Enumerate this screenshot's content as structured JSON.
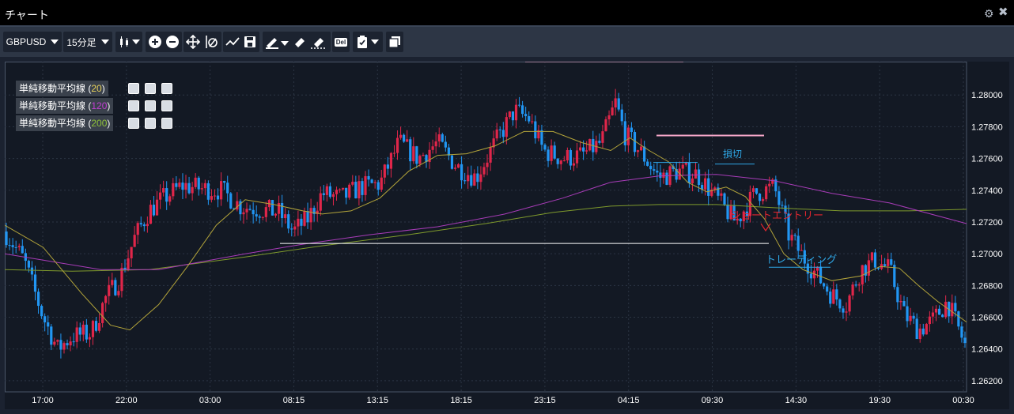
{
  "window": {
    "title": "チャート"
  },
  "toolbar": {
    "symbol": "GBPUSD",
    "timeframe": "15分足",
    "delete_label": "Del"
  },
  "legend": [
    {
      "name": "単純移動平均線",
      "period": "20",
      "color": "#e8d25a"
    },
    {
      "name": "単純移動平均線",
      "period": "120",
      "color": "#c040d0"
    },
    {
      "name": "単純移動平均線",
      "period": "200",
      "color": "#8fc23a"
    }
  ],
  "annotations": {
    "stop_loss": "損切",
    "short_entry": "ショートエントリー",
    "trailing": "トレーディング"
  },
  "chart_data": {
    "type": "candlestick",
    "symbol": "GBPUSD",
    "timeframe": "15分足",
    "y_ticks": [
      "1.28000",
      "1.27800",
      "1.27600",
      "1.27400",
      "1.27200",
      "1.27000",
      "1.26800",
      "1.26600",
      "1.26400",
      "1.26200"
    ],
    "x_ticks": [
      "17:00",
      "22:00",
      "03:00",
      "08:15",
      "13:15",
      "18:15",
      "23:15",
      "04:15",
      "09:30",
      "14:30",
      "19:30",
      "00:30"
    ],
    "ylim": [
      1.2613,
      1.2821
    ],
    "price_path": [
      [
        0,
        1.2714
      ],
      [
        0.02,
        1.2696
      ],
      [
        0.04,
        1.266
      ],
      [
        0.055,
        1.264
      ],
      [
        0.07,
        1.2648
      ],
      [
        0.09,
        1.265
      ],
      [
        0.105,
        1.2672
      ],
      [
        0.12,
        1.2685
      ],
      [
        0.135,
        1.271
      ],
      [
        0.15,
        1.2727
      ],
      [
        0.165,
        1.2735
      ],
      [
        0.185,
        1.2743
      ],
      [
        0.205,
        1.2741
      ],
      [
        0.225,
        1.274
      ],
      [
        0.245,
        1.273
      ],
      [
        0.265,
        1.2728
      ],
      [
        0.285,
        1.2726
      ],
      [
        0.3,
        1.2714
      ],
      [
        0.315,
        1.2722
      ],
      [
        0.33,
        1.2738
      ],
      [
        0.35,
        1.2735
      ],
      [
        0.37,
        1.2742
      ],
      [
        0.39,
        1.2744
      ],
      [
        0.41,
        1.277
      ],
      [
        0.43,
        1.276
      ],
      [
        0.45,
        1.277
      ],
      [
        0.47,
        1.2755
      ],
      [
        0.49,
        1.2748
      ],
      [
        0.51,
        1.277
      ],
      [
        0.53,
        1.279
      ],
      [
        0.545,
        1.2785
      ],
      [
        0.56,
        1.2765
      ],
      [
        0.58,
        1.276
      ],
      [
        0.6,
        1.2762
      ],
      [
        0.62,
        1.277
      ],
      [
        0.635,
        1.2795
      ],
      [
        0.645,
        1.2775
      ],
      [
        0.66,
        1.2765
      ],
      [
        0.68,
        1.2748
      ],
      [
        0.7,
        1.2752
      ],
      [
        0.72,
        1.275
      ],
      [
        0.74,
        1.2735
      ],
      [
        0.76,
        1.272
      ],
      [
        0.78,
        1.2738
      ],
      [
        0.8,
        1.2742
      ],
      [
        0.815,
        1.2712
      ],
      [
        0.83,
        1.2698
      ],
      [
        0.845,
        1.2686
      ],
      [
        0.86,
        1.2674
      ],
      [
        0.875,
        1.2668
      ],
      [
        0.89,
        1.269
      ],
      [
        0.905,
        1.2696
      ],
      [
        0.92,
        1.269
      ],
      [
        0.935,
        1.2662
      ],
      [
        0.95,
        1.2652
      ],
      [
        0.965,
        1.2658
      ],
      [
        0.98,
        1.267
      ],
      [
        1.0,
        1.264
      ]
    ],
    "sma20_path": [
      [
        0,
        1.2718
      ],
      [
        0.04,
        1.2704
      ],
      [
        0.08,
        1.2675
      ],
      [
        0.11,
        1.2655
      ],
      [
        0.13,
        1.2652
      ],
      [
        0.16,
        1.2668
      ],
      [
        0.19,
        1.2692
      ],
      [
        0.22,
        1.2718
      ],
      [
        0.25,
        1.2734
      ],
      [
        0.28,
        1.2731
      ],
      [
        0.31,
        1.2727
      ],
      [
        0.33,
        1.2725
      ],
      [
        0.36,
        1.2727
      ],
      [
        0.39,
        1.2735
      ],
      [
        0.42,
        1.2752
      ],
      [
        0.45,
        1.2762
      ],
      [
        0.48,
        1.2763
      ],
      [
        0.51,
        1.2768
      ],
      [
        0.54,
        1.2777
      ],
      [
        0.57,
        1.2777
      ],
      [
        0.6,
        1.277
      ],
      [
        0.63,
        1.2765
      ],
      [
        0.65,
        1.2773
      ],
      [
        0.67,
        1.2765
      ],
      [
        0.69,
        1.2758
      ],
      [
        0.71,
        1.2745
      ],
      [
        0.73,
        1.2739
      ],
      [
        0.75,
        1.2742
      ],
      [
        0.77,
        1.2736
      ],
      [
        0.79,
        1.2722
      ],
      [
        0.81,
        1.27
      ],
      [
        0.83,
        1.269
      ],
      [
        0.86,
        1.2683
      ],
      [
        0.89,
        1.2686
      ],
      [
        0.91,
        1.2692
      ],
      [
        0.93,
        1.2691
      ],
      [
        0.95,
        1.268
      ],
      [
        0.97,
        1.267
      ],
      [
        1.0,
        1.2657
      ]
    ],
    "sma120_path": [
      [
        0,
        1.27
      ],
      [
        0.1,
        1.269
      ],
      [
        0.16,
        1.269
      ],
      [
        0.25,
        1.27
      ],
      [
        0.31,
        1.2706
      ],
      [
        0.38,
        1.2712
      ],
      [
        0.45,
        1.2717
      ],
      [
        0.52,
        1.2725
      ],
      [
        0.58,
        1.2735
      ],
      [
        0.63,
        1.2745
      ],
      [
        0.68,
        1.2749
      ],
      [
        0.74,
        1.275
      ],
      [
        0.8,
        1.2746
      ],
      [
        0.86,
        1.2738
      ],
      [
        0.92,
        1.2732
      ],
      [
        1.0,
        1.2719
      ]
    ],
    "sma200_path": [
      [
        0,
        1.269
      ],
      [
        0.07,
        1.2689
      ],
      [
        0.15,
        1.269
      ],
      [
        0.25,
        1.2698
      ],
      [
        0.33,
        1.2705
      ],
      [
        0.42,
        1.2712
      ],
      [
        0.5,
        1.2719
      ],
      [
        0.57,
        1.2726
      ],
      [
        0.63,
        1.273
      ],
      [
        0.68,
        1.2731
      ],
      [
        0.74,
        1.2731
      ],
      [
        0.8,
        1.2729
      ],
      [
        0.87,
        1.2727
      ],
      [
        0.94,
        1.2727
      ],
      [
        1.0,
        1.2728
      ]
    ]
  }
}
